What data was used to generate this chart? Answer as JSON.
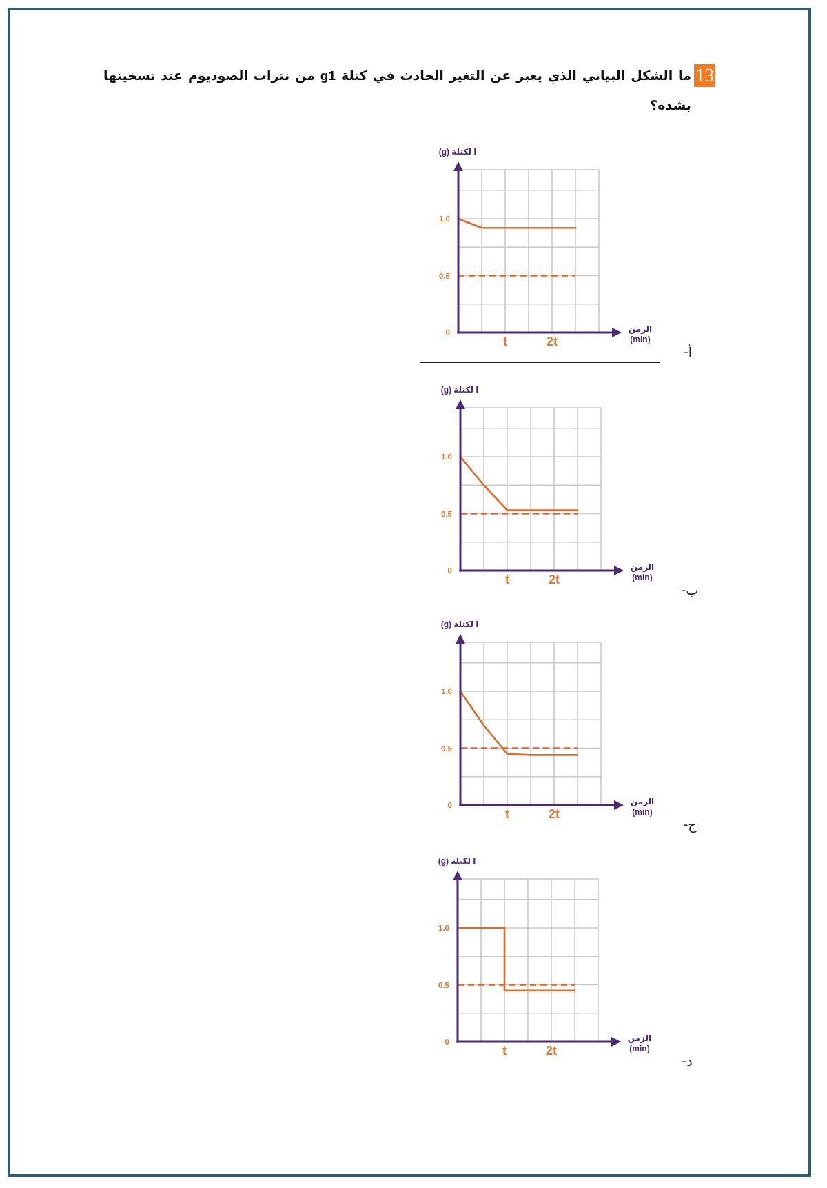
{
  "chart_data": [
    {
      "type": "other",
      "title": "ما الشكل البياني الذي يعبر عن التغير الحادث في كتلة g1 من نترات الصوديوم عند تسخينها بشدة؟",
      "annotations": [
        "13"
      ]
    },
    {
      "type": "line",
      "xlabel": "الزمن (min)",
      "ylabel": "ا لكتلة (g)",
      "ylim": [
        0,
        1.43
      ],
      "categories": [
        null,
        null,
        "t",
        null,
        "2t",
        null,
        null
      ],
      "yticks": [
        {
          "value": 0,
          "label": "0"
        },
        {
          "value": 0.25,
          "label": null
        },
        {
          "value": 0.5,
          "label": "0.5"
        },
        {
          "value": 0.75,
          "label": null
        },
        {
          "value": 1,
          "label": "1.0"
        },
        {
          "value": 1.25,
          "label": null
        },
        {
          "value": 1.43,
          "label": null
        }
      ],
      "grid": true,
      "series": [
        {
          "color": "#e06a2a",
          "values": [
            1.0,
            0.92,
            0.92,
            0.92,
            0.92,
            0.92,
            null
          ]
        },
        {
          "color": "#e06a2a",
          "line_style": "dashed",
          "values": [
            0.5,
            0.5,
            0.5,
            0.5,
            0.5,
            0.5,
            null
          ]
        }
      ],
      "annotations": [
        "أ-"
      ]
    },
    {
      "type": "line",
      "xlabel": "الزمن (min)",
      "ylabel": "ا لكتلة (g)",
      "ylim": [
        0,
        1.43
      ],
      "categories": [
        null,
        null,
        "t",
        null,
        "2t",
        null,
        null
      ],
      "yticks": [
        {
          "value": 0,
          "label": "0"
        },
        {
          "value": 0.25,
          "label": null
        },
        {
          "value": 0.5,
          "label": "0.5"
        },
        {
          "value": 0.75,
          "label": null
        },
        {
          "value": 1,
          "label": "1.0"
        },
        {
          "value": 1.25,
          "label": null
        },
        {
          "value": 1.43,
          "label": null
        }
      ],
      "grid": true,
      "series": [
        {
          "color": "#e06a2a",
          "values": [
            1.0,
            0.75,
            0.53,
            0.53,
            0.53,
            0.53,
            null
          ]
        },
        {
          "color": "#e06a2a",
          "line_style": "dashed",
          "values": [
            0.5,
            0.5,
            0.5,
            0.5,
            0.5,
            0.5,
            null
          ]
        }
      ],
      "annotations": [
        "ب-"
      ]
    },
    {
      "type": "line",
      "xlabel": "الزمن (min)",
      "ylabel": "ا لكتلة (g)",
      "ylim": [
        0,
        1.43
      ],
      "categories": [
        null,
        null,
        "t",
        null,
        "2t",
        null,
        null
      ],
      "yticks": [
        {
          "value": 0,
          "label": "0"
        },
        {
          "value": 0.25,
          "label": null
        },
        {
          "value": 0.5,
          "label": "0.5"
        },
        {
          "value": 0.75,
          "label": null
        },
        {
          "value": 1,
          "label": "1.0"
        },
        {
          "value": 1.25,
          "label": null
        },
        {
          "value": 1.43,
          "label": null
        }
      ],
      "grid": true,
      "series": [
        {
          "color": "#e06a2a",
          "values": [
            1.0,
            0.7,
            0.45,
            0.44,
            0.44,
            0.44,
            null
          ]
        },
        {
          "color": "#e06a2a",
          "line_style": "dashed",
          "values": [
            0.5,
            0.5,
            0.5,
            0.5,
            0.5,
            0.5,
            null
          ]
        }
      ],
      "annotations": [
        "ج-"
      ]
    },
    {
      "type": "line",
      "xlabel": "الزمن (min)",
      "ylabel": "ا لكتلة (g)",
      "ylim": [
        0,
        1.43
      ],
      "categories": [
        null,
        null,
        "t",
        null,
        "2t",
        null,
        null
      ],
      "yticks": [
        {
          "value": 0,
          "label": "0"
        },
        {
          "value": 0.25,
          "label": null
        },
        {
          "value": 0.5,
          "label": "0.5"
        },
        {
          "value": 0.75,
          "label": null
        },
        {
          "value": 1,
          "label": "1.0"
        },
        {
          "value": 1.25,
          "label": null
        },
        {
          "value": 1.43,
          "label": null
        }
      ],
      "grid": true,
      "series": [
        {
          "type": "step",
          "color": "#e06a2a",
          "values": [
            1.0,
            1.0,
            0.45,
            0.45,
            0.45,
            0.45,
            null
          ]
        },
        {
          "color": "#e06a2a",
          "line_style": "dashed",
          "values": [
            0.5,
            0.5,
            0.5,
            0.5,
            0.5,
            0.5,
            null
          ]
        }
      ],
      "annotations": [
        "د-"
      ]
    }
  ]
}
